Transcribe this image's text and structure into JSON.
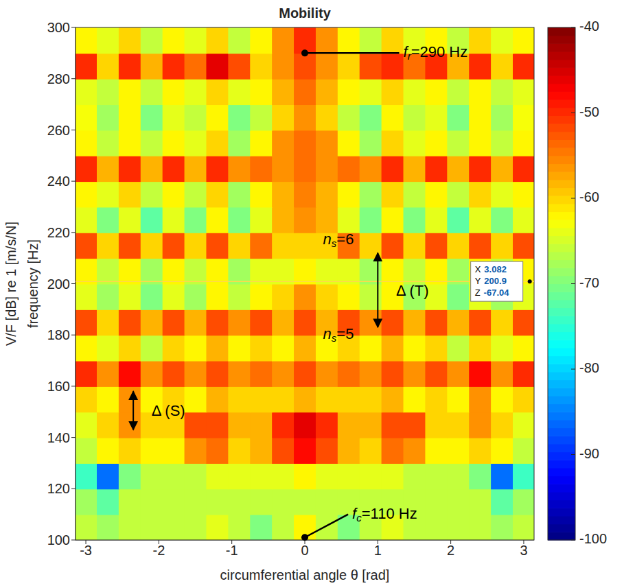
{
  "chart_data": {
    "type": "heatmap",
    "title": "Mobility",
    "x_label": "circumferential angle θ [rad]",
    "y_label": "frequency [Hz]",
    "xlim": [
      -3.1416,
      3.1416
    ],
    "ylim": [
      100,
      300
    ],
    "xticks": [
      -3,
      -2,
      -1,
      0,
      1,
      2,
      3
    ],
    "yticks": [
      100,
      120,
      140,
      160,
      180,
      200,
      220,
      240,
      260,
      280,
      300
    ],
    "grid": false,
    "x": [
      -3.0,
      -2.7,
      -2.4,
      -2.1,
      -1.8,
      -1.5,
      -1.2,
      -0.9,
      -0.6,
      -0.3,
      0,
      0.3,
      0.6,
      0.9,
      1.2,
      1.5,
      1.8,
      2.1,
      2.4,
      2.7,
      3.0
    ],
    "y": [
      105,
      115,
      125,
      135,
      145,
      155,
      165,
      175,
      185,
      195,
      205,
      215,
      225,
      235,
      245,
      255,
      265,
      275,
      285,
      295
    ],
    "z": [
      [
        -66,
        -68,
        -66,
        -66,
        -66,
        -66,
        -64,
        -66,
        -70,
        -66,
        -62,
        -66,
        -70,
        -66,
        -64,
        -66,
        -66,
        -66,
        -66,
        -68,
        -66
      ],
      [
        -68,
        -72,
        -66,
        -66,
        -66,
        -66,
        -66,
        -66,
        -66,
        -66,
        -66,
        -66,
        -66,
        -66,
        -66,
        -66,
        -66,
        -66,
        -66,
        -72,
        -68
      ],
      [
        -74,
        -86,
        -70,
        -66,
        -66,
        -66,
        -64,
        -64,
        -64,
        -64,
        -62,
        -64,
        -64,
        -64,
        -64,
        -66,
        -66,
        -66,
        -70,
        -86,
        -74
      ],
      [
        -66,
        -62,
        -60,
        -62,
        -62,
        -56,
        -54,
        -60,
        -58,
        -52,
        -48,
        -52,
        -58,
        -60,
        -54,
        -56,
        -62,
        -62,
        -60,
        -62,
        -66
      ],
      [
        -64,
        -60,
        -56,
        -60,
        -60,
        -52,
        -52,
        -58,
        -58,
        -50,
        -46,
        -50,
        -58,
        -58,
        -52,
        -52,
        -60,
        -60,
        -56,
        -60,
        -64
      ],
      [
        -60,
        -62,
        -56,
        -62,
        -60,
        -62,
        -58,
        -60,
        -60,
        -60,
        -58,
        -60,
        -60,
        -60,
        -58,
        -62,
        -60,
        -62,
        -56,
        -62,
        -60
      ],
      [
        -50,
        -56,
        -48,
        -56,
        -52,
        -56,
        -52,
        -56,
        -54,
        -56,
        -52,
        -56,
        -54,
        -56,
        -52,
        -56,
        -52,
        -56,
        -48,
        -56,
        -50
      ],
      [
        -62,
        -64,
        -60,
        -66,
        -60,
        -62,
        -58,
        -62,
        -60,
        -62,
        -58,
        -62,
        -60,
        -62,
        -58,
        -62,
        -60,
        -66,
        -60,
        -64,
        -62
      ],
      [
        -52,
        -60,
        -52,
        -58,
        -52,
        -58,
        -52,
        -56,
        -52,
        -58,
        -52,
        -58,
        -52,
        -56,
        -52,
        -58,
        -52,
        -58,
        -52,
        -60,
        -52
      ],
      [
        -64,
        -68,
        -64,
        -70,
        -64,
        -68,
        -62,
        -66,
        -62,
        -60,
        -56,
        -60,
        -62,
        -66,
        -62,
        -68,
        -64,
        -70,
        -64,
        -68,
        -64
      ],
      [
        -62,
        -66,
        -62,
        -68,
        -62,
        -66,
        -62,
        -68,
        -64,
        -64,
        -62,
        -64,
        -64,
        -68,
        -62,
        -66,
        -62,
        -68,
        -62,
        -66,
        -62
      ],
      [
        -52,
        -60,
        -52,
        -60,
        -52,
        -60,
        -52,
        -60,
        -54,
        -60,
        -60,
        -60,
        -54,
        -60,
        -52,
        -60,
        -52,
        -60,
        -52,
        -60,
        -52
      ],
      [
        -64,
        -70,
        -64,
        -72,
        -64,
        -70,
        -62,
        -70,
        -64,
        -58,
        -56,
        -58,
        -64,
        -70,
        -62,
        -70,
        -64,
        -72,
        -64,
        -70,
        -64
      ],
      [
        -62,
        -64,
        -60,
        -66,
        -62,
        -66,
        -60,
        -68,
        -62,
        -58,
        -55,
        -58,
        -62,
        -68,
        -60,
        -66,
        -62,
        -66,
        -60,
        -64,
        -62
      ],
      [
        -50,
        -58,
        -50,
        -58,
        -50,
        -58,
        -50,
        -56,
        -54,
        -56,
        -54,
        -56,
        -54,
        -56,
        -50,
        -58,
        -50,
        -58,
        -50,
        -58,
        -50
      ],
      [
        -62,
        -66,
        -62,
        -66,
        -62,
        -64,
        -60,
        -68,
        -62,
        -56,
        -54,
        -56,
        -62,
        -68,
        -60,
        -64,
        -62,
        -66,
        -62,
        -66,
        -62
      ],
      [
        -63,
        -68,
        -62,
        -70,
        -64,
        -66,
        -62,
        -70,
        -66,
        -60,
        -56,
        -60,
        -66,
        -70,
        -62,
        -66,
        -64,
        -70,
        -62,
        -68,
        -63
      ],
      [
        -64,
        -66,
        -62,
        -66,
        -62,
        -64,
        -60,
        -64,
        -62,
        -58,
        -54,
        -58,
        -62,
        -64,
        -60,
        -64,
        -62,
        -66,
        -62,
        -66,
        -64
      ],
      [
        -50,
        -60,
        -50,
        -58,
        -50,
        -54,
        -46,
        -52,
        -60,
        -56,
        -52,
        -56,
        -60,
        -52,
        -50,
        -54,
        -50,
        -58,
        -50,
        -60,
        -50
      ],
      [
        -62,
        -64,
        -60,
        -66,
        -62,
        -64,
        -60,
        -66,
        -62,
        -56,
        -50,
        -56,
        -62,
        -66,
        -60,
        -64,
        -62,
        -66,
        -60,
        -64,
        -62
      ]
    ],
    "colorbar": {
      "label": "V/F [dB] re 1 [m/s/N]",
      "range": [
        -100,
        -40
      ],
      "ticks": [
        -100,
        -90,
        -80,
        -70,
        -60,
        -50,
        -40
      ]
    },
    "annotations": [
      {
        "main": "f",
        "sub": "r",
        "rest": "=290 Hz",
        "x": 1.35,
        "y": 290,
        "point": [
          0,
          290
        ]
      },
      {
        "main": "n",
        "sub": "s",
        "rest": "=6",
        "x": 0.25,
        "y": 217
      },
      {
        "main": "n",
        "sub": "s",
        "rest": "=5",
        "x": 0.25,
        "y": 180
      },
      {
        "main": "Δ (T)",
        "x": 1.25,
        "y": 197,
        "arrow": {
          "x": 1.0,
          "from": 183,
          "to": 212
        }
      },
      {
        "main": "Δ (S)",
        "x": -2.1,
        "y": 150,
        "arrow": {
          "x": -2.35,
          "from": 143,
          "to": 158
        }
      },
      {
        "main": "f",
        "sub": "c",
        "rest": "=110 Hz",
        "x": 0.65,
        "y": 110,
        "point": [
          0,
          101
        ]
      }
    ],
    "datatip": {
      "x": 3.082,
      "y": 200.9,
      "z": -67.04,
      "labels": [
        "X",
        "Y",
        "Z"
      ]
    }
  }
}
